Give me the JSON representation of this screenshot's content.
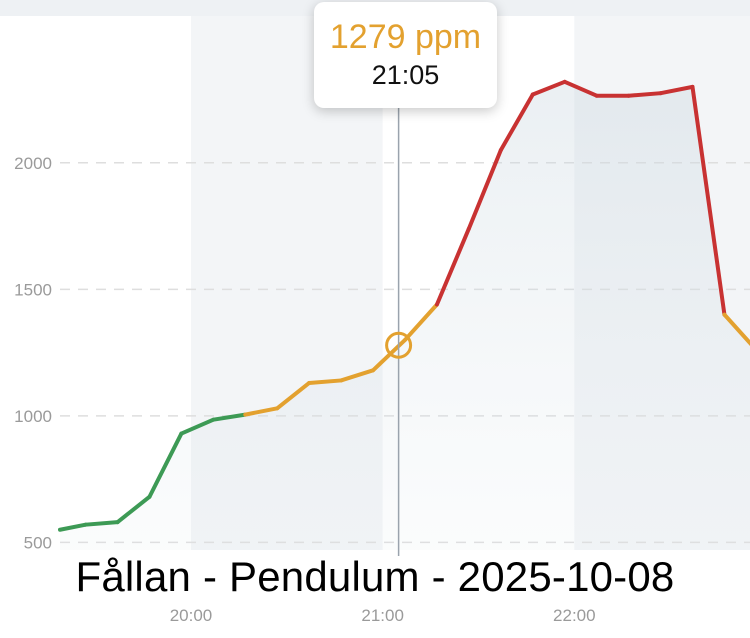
{
  "chart_data": {
    "type": "line",
    "title": "Fållan - Pendulum - 2025-10-08",
    "xlabel": "",
    "ylabel": "",
    "y_unit": "ppm",
    "ylim": [
      470,
      2580
    ],
    "xlim": [
      "19:19",
      "22:55"
    ],
    "y_ticks": [
      "500",
      "1000",
      "1500",
      "2000"
    ],
    "x_ticks": [
      "20:00",
      "21:00",
      "22:00"
    ],
    "grid": "horizontal dashed",
    "series": [
      {
        "x": [
          "19:19",
          "19:27",
          "19:37",
          "19:47",
          "19:57",
          "20:07",
          "20:17",
          "20:27",
          "20:37",
          "20:47",
          "20:57",
          "21:07",
          "21:17",
          "21:27",
          "21:37",
          "21:47",
          "21:57",
          "22:07",
          "22:17",
          "22:27",
          "22:37",
          "22:47",
          "22:57"
        ],
        "values": [
          550,
          570,
          580,
          680,
          930,
          985,
          1005,
          1030,
          1130,
          1140,
          1180,
          1300,
          1440,
          1740,
          2050,
          2270,
          2320,
          2265,
          2265,
          2275,
          2300,
          1400,
          1260
        ]
      }
    ],
    "color_thresholds": [
      {
        "below": 1000,
        "color": "#3d9a55"
      },
      {
        "below": 1400,
        "color": "#e3a12f"
      },
      {
        "below": 99999,
        "color": "#c83232"
      }
    ],
    "shaded_bands": [
      [
        "20:00",
        "21:00"
      ],
      [
        "22:00",
        "22:57"
      ]
    ],
    "highlight": {
      "x": "21:05",
      "y": 1279
    }
  },
  "tooltip": {
    "value_text": "1279 ppm",
    "time_text": "21:05",
    "value_color": "#e3a12f"
  }
}
